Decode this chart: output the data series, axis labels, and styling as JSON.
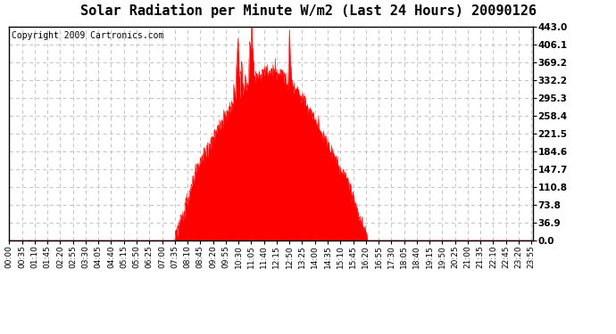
{
  "title": "Solar Radiation per Minute W/m2 (Last 24 Hours) 20090126",
  "copyright_text": "Copyright 2009 Cartronics.com",
  "fill_color": "#ff0000",
  "line_color": "#ff0000",
  "background_color": "#ffffff",
  "grid_color": "#bbbbbb",
  "dashed_line_color": "#ff0000",
  "yticks": [
    0.0,
    36.9,
    73.8,
    110.8,
    147.7,
    184.6,
    221.5,
    258.4,
    295.3,
    332.2,
    369.2,
    406.1,
    443.0
  ],
  "ymax": 443.0,
  "ymin": 0.0,
  "n_minutes": 1440,
  "title_fontsize": 11,
  "copyright_fontsize": 7,
  "tick_fontsize": 6.5,
  "ytick_fontsize": 7.5,
  "sunrise": 455,
  "sunset": 985
}
